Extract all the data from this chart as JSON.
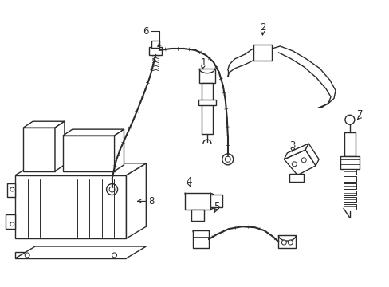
{
  "background_color": "#ffffff",
  "line_color": "#2a2a2a",
  "line_width": 1.0,
  "label_fontsize": 8.5,
  "fig_width": 4.89,
  "fig_height": 3.6
}
